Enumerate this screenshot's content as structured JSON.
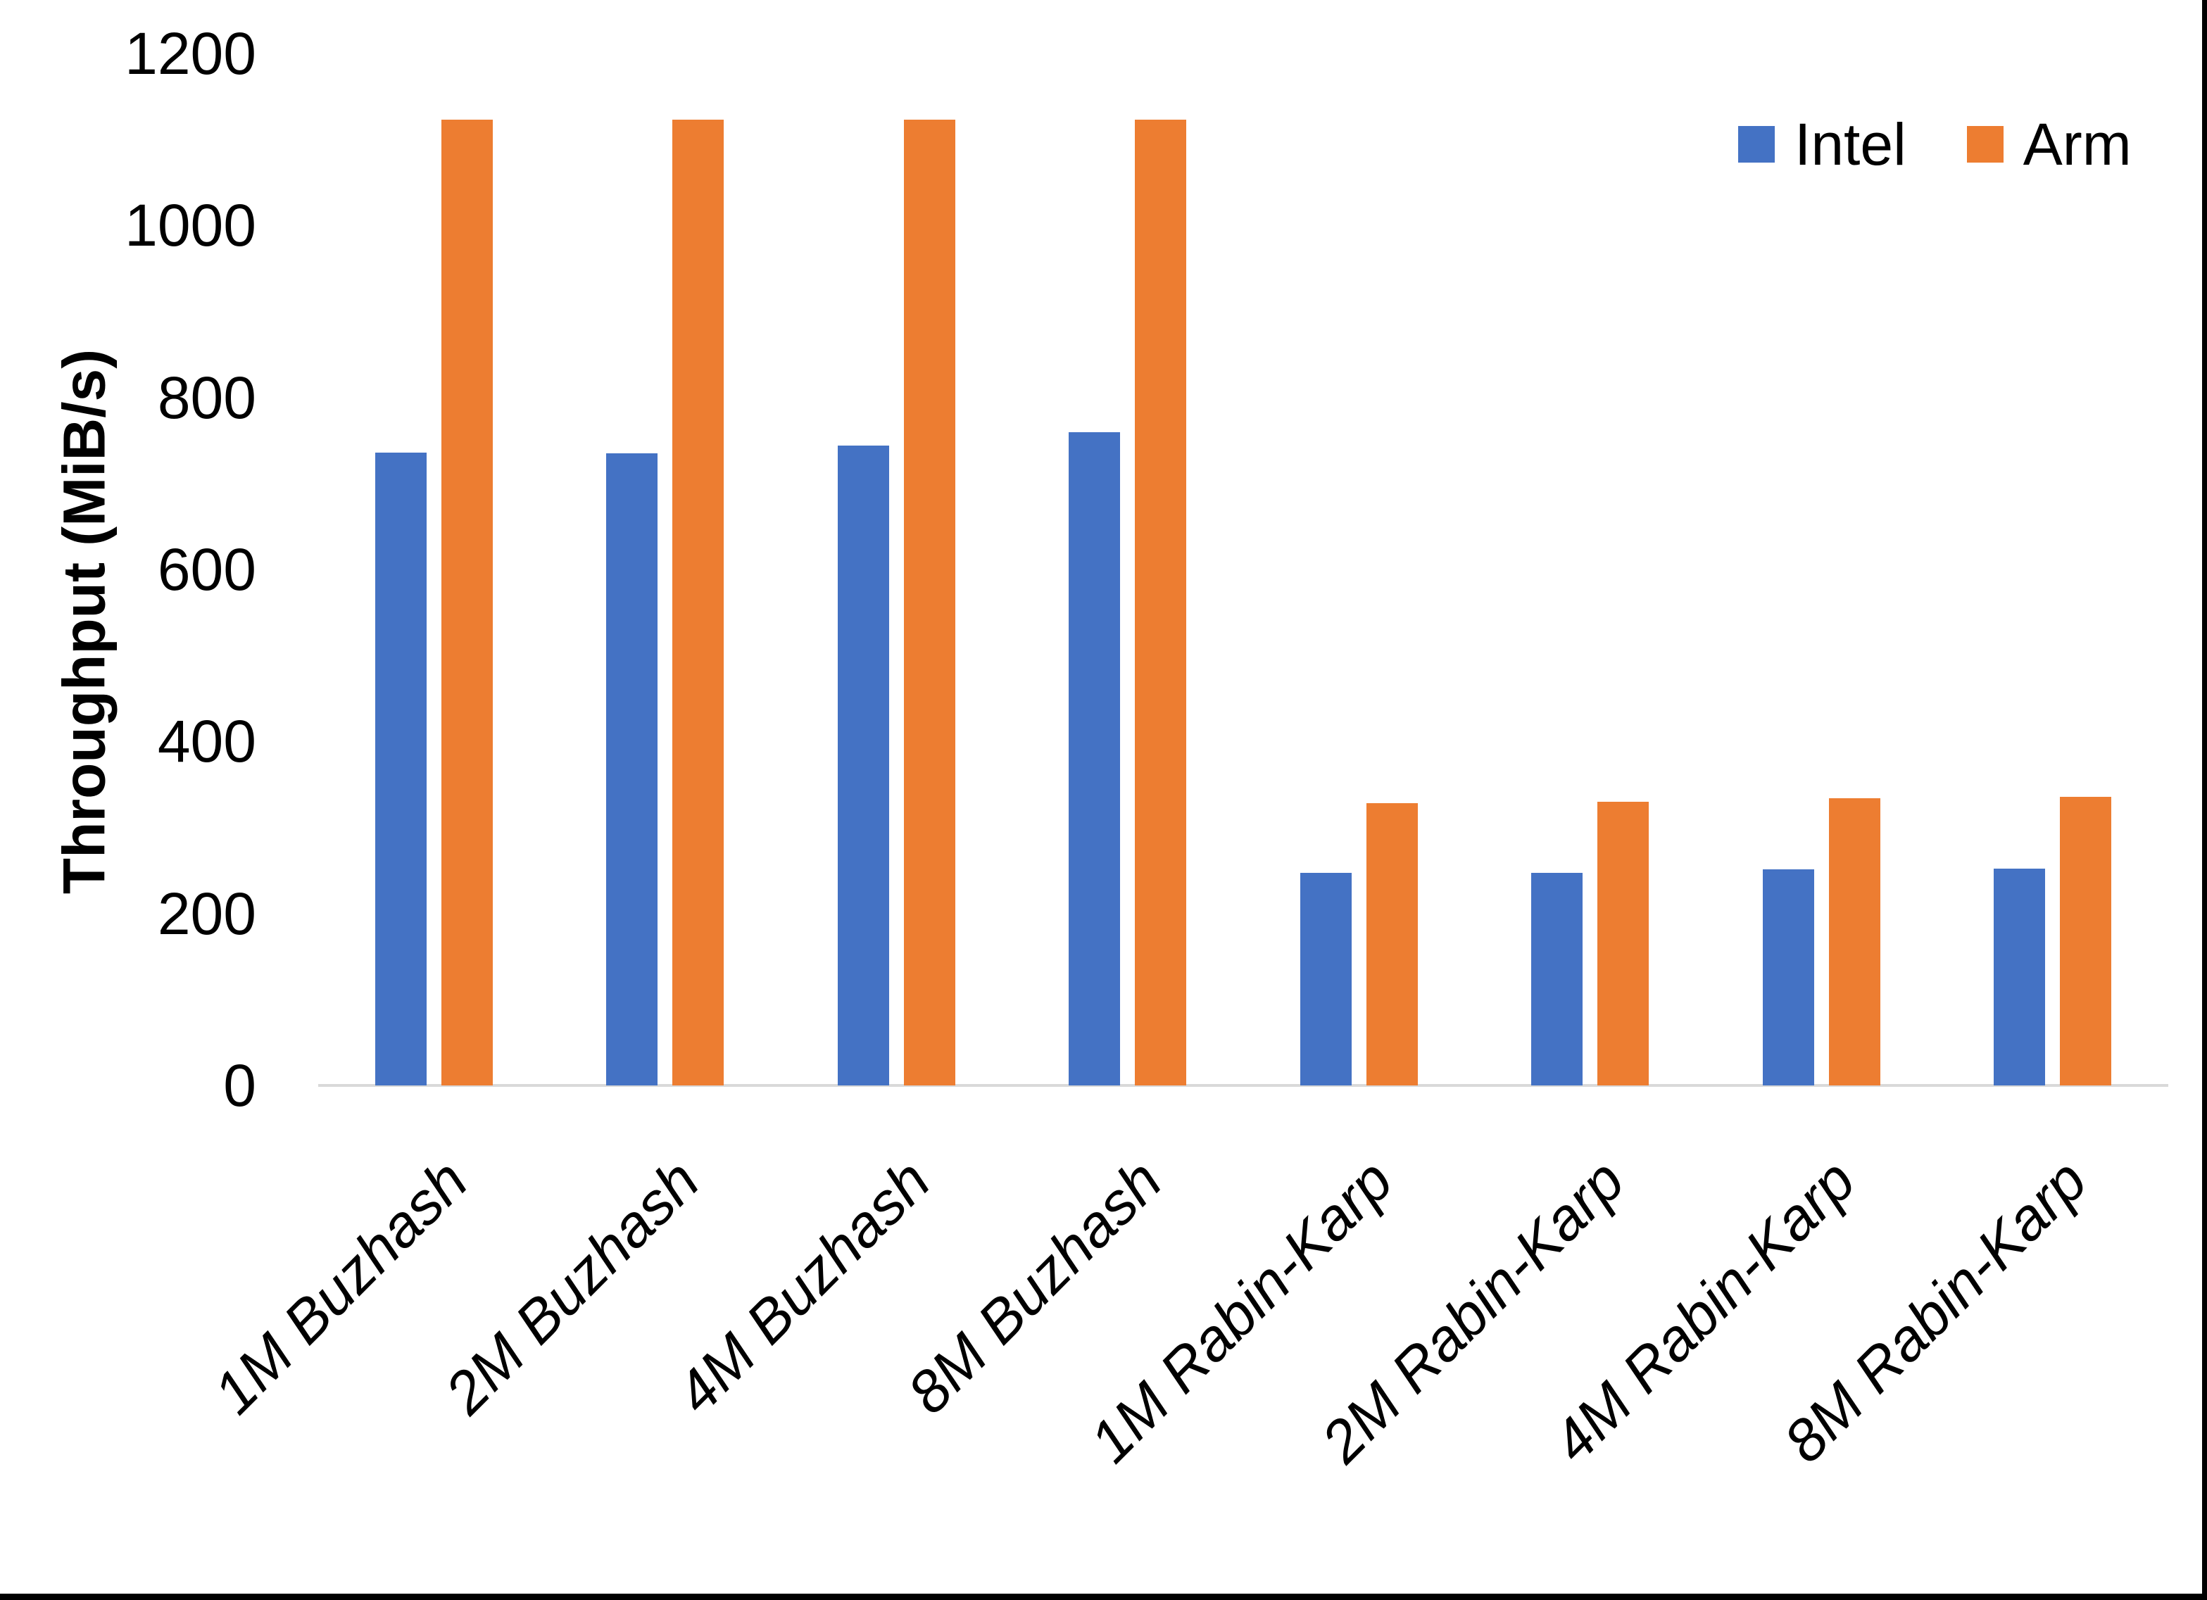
{
  "chart_data": {
    "type": "bar",
    "title": "",
    "xlabel": "",
    "ylabel": "Throughput (MiB/s)",
    "ylim": [
      0,
      1200
    ],
    "yticks": [
      0,
      200,
      400,
      600,
      800,
      1000,
      1200
    ],
    "grid": false,
    "legend_position": "top-right",
    "axis_line_color": "#d9d9d9",
    "text_color": "#000000",
    "frame_border_color": "#000000",
    "categories": [
      "1M Buzhash",
      "2M Buzhash",
      "4M Buzhash",
      "8M Buzhash",
      "1M Rabin-Karp",
      "2M Rabin-Karp",
      "4M Rabin-Karp",
      "8M Rabin-Karp"
    ],
    "series": [
      {
        "name": "Intel",
        "color": "#4472c4",
        "values": [
          736,
          735,
          744,
          760,
          247,
          247,
          251,
          252
        ]
      },
      {
        "name": "Arm",
        "color": "#ed7d31",
        "values": [
          1123,
          1123,
          1123,
          1123,
          328,
          330,
          334,
          336
        ]
      }
    ]
  }
}
